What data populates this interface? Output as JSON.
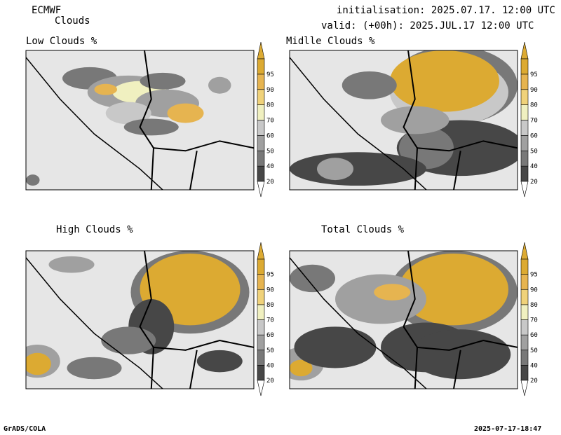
{
  "header": {
    "model": "ECMWF",
    "product": "Clouds",
    "init_line": "initialisation: 2025.07.17. 12:00 UTC",
    "valid_line": "valid: (+00h): 2025.JUL.17 12:00 UTC"
  },
  "footer": {
    "left": "GrADS/COLA",
    "right": "2025-07-17-18:47"
  },
  "colors": {
    "background": "#ffffff",
    "land": "#e6e6e6",
    "levels": [
      "#474747",
      "#787878",
      "#a0a0a0",
      "#c8c8c8",
      "#f0f0c0",
      "#f0d27a",
      "#e6b450",
      "#dcaa32"
    ],
    "border": "#000000"
  },
  "chart_data": [
    {
      "type": "heatmap",
      "title": "Low Clouds %",
      "colorbar_ticks": [
        20,
        40,
        50,
        60,
        70,
        80,
        90,
        95
      ],
      "coverage_description_values": {
        "clear_fraction": 0.75
      }
    },
    {
      "type": "heatmap",
      "title": "Midlle Clouds %",
      "colorbar_ticks": [
        20,
        40,
        50,
        60,
        70,
        80,
        90,
        95
      ]
    },
    {
      "type": "heatmap",
      "title": "High Clouds %",
      "colorbar_ticks": [
        20,
        40,
        50,
        60,
        70,
        80,
        90,
        95
      ]
    },
    {
      "type": "heatmap",
      "title": "Total Clouds %",
      "colorbar_ticks": [
        20,
        40,
        50,
        60,
        70,
        80,
        90,
        95
      ]
    }
  ]
}
